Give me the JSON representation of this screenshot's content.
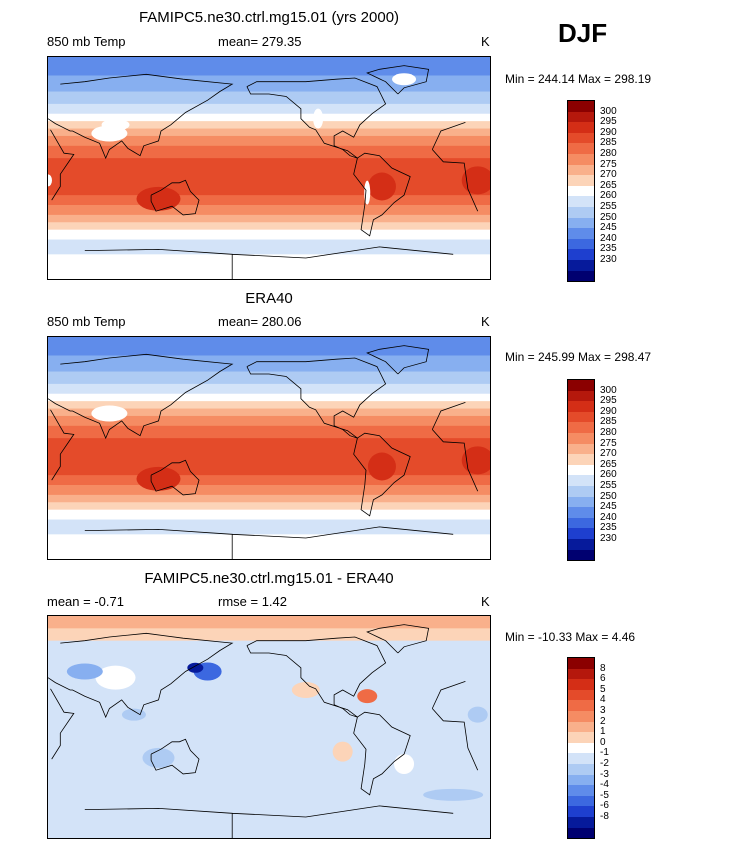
{
  "season": "DJF",
  "panels": [
    {
      "title": "FAMIPC5.ne30.ctrl.mg15.01 (yrs 2000)",
      "left_label": "850 mb Temp",
      "center_label": "mean= 279.35",
      "units": "K",
      "minmax": "Min = 244.14 Max = 298.19",
      "kind": "model",
      "colorbar": {
        "labels": [
          "300",
          "295",
          "290",
          "285",
          "280",
          "275",
          "270",
          "265",
          "260",
          "255",
          "250",
          "245",
          "240",
          "235",
          "230"
        ],
        "colors": [
          "#8b0000",
          "#b5180c",
          "#d42e16",
          "#e44b2a",
          "#ef6b45",
          "#f58c63",
          "#f9b08b",
          "#fcd4b8",
          "#ffffff",
          "#d3e3f8",
          "#aecbf3",
          "#87aff0",
          "#5f8cea",
          "#3c68e0",
          "#1e3fcf",
          "#061a9b",
          "#000070"
        ]
      }
    },
    {
      "title": "ERA40",
      "left_label": "850 mb Temp",
      "center_label": "mean= 280.06",
      "units": "K",
      "minmax": "Min = 245.99 Max = 298.47",
      "kind": "obs",
      "colorbar": {
        "labels": [
          "300",
          "295",
          "290",
          "285",
          "280",
          "275",
          "270",
          "265",
          "260",
          "255",
          "250",
          "245",
          "240",
          "235",
          "230"
        ],
        "colors": [
          "#8b0000",
          "#b5180c",
          "#d42e16",
          "#e44b2a",
          "#ef6b45",
          "#f58c63",
          "#f9b08b",
          "#fcd4b8",
          "#ffffff",
          "#d3e3f8",
          "#aecbf3",
          "#87aff0",
          "#5f8cea",
          "#3c68e0",
          "#1e3fcf",
          "#061a9b",
          "#000070"
        ]
      }
    },
    {
      "title": "FAMIPC5.ne30.ctrl.mg15.01 - ERA40",
      "left_label": "mean =   -0.71",
      "center_label": "rmse =    1.42",
      "units": "K",
      "minmax": "Min = -10.33 Max =   4.46",
      "kind": "diff",
      "colorbar": {
        "labels": [
          "8",
          "6",
          "5",
          "4",
          "3",
          "2",
          "1",
          "0",
          "-1",
          "-2",
          "-3",
          "-4",
          "-5",
          "-6",
          "-8"
        ],
        "colors": [
          "#8b0000",
          "#b5180c",
          "#d42e16",
          "#e44b2a",
          "#ef6b45",
          "#f58c63",
          "#f9b08b",
          "#fcd4b8",
          "#ffffff",
          "#d3e3f8",
          "#aecbf3",
          "#87aff0",
          "#5f8cea",
          "#3c68e0",
          "#1e3fcf",
          "#061a9b",
          "#000070"
        ]
      }
    }
  ]
}
